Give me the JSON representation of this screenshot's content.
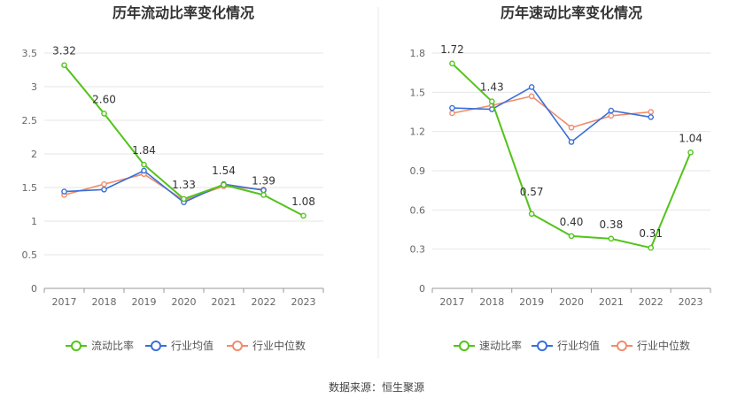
{
  "source_text": "数据来源：恒生聚源",
  "chart_data": [
    {
      "type": "line",
      "title": "历年流动比率变化情况",
      "categories": [
        "2017",
        "2018",
        "2019",
        "2020",
        "2021",
        "2022",
        "2023"
      ],
      "ylim": [
        0,
        3.5
      ],
      "yticks": [
        "0",
        "0.5",
        "1",
        "1.5",
        "2",
        "2.5",
        "3",
        "3.5"
      ],
      "grid": true,
      "legend_position": "bottom",
      "series": [
        {
          "name": "流动比率",
          "color": "#52c41a",
          "values": [
            3.32,
            2.6,
            1.84,
            1.33,
            1.54,
            1.39,
            1.08
          ],
          "labels": [
            "3.32",
            "2.60",
            "1.84",
            "1.33",
            "1.54",
            "1.39",
            "1.08"
          ]
        },
        {
          "name": "行业均值",
          "color": "#3a6fd8",
          "values": [
            1.44,
            1.47,
            1.75,
            1.28,
            1.55,
            1.46,
            null
          ]
        },
        {
          "name": "行业中位数",
          "color": "#f08c6c",
          "values": [
            1.39,
            1.55,
            1.7,
            1.31,
            1.52,
            1.47,
            null
          ]
        }
      ]
    },
    {
      "type": "line",
      "title": "历年速动比率变化情况",
      "categories": [
        "2017",
        "2018",
        "2019",
        "2020",
        "2021",
        "2022",
        "2023"
      ],
      "ylim": [
        0,
        1.8
      ],
      "yticks": [
        "0",
        "0.3",
        "0.6",
        "0.9",
        "1.2",
        "1.5",
        "1.8"
      ],
      "grid": true,
      "legend_position": "bottom",
      "series": [
        {
          "name": "速动比率",
          "color": "#52c41a",
          "values": [
            1.72,
            1.43,
            0.57,
            0.4,
            0.38,
            0.31,
            1.04
          ],
          "labels": [
            "1.72",
            "1.43",
            "0.57",
            "0.40",
            "0.38",
            "0.31",
            "1.04"
          ]
        },
        {
          "name": "行业均值",
          "color": "#3a6fd8",
          "values": [
            1.38,
            1.37,
            1.54,
            1.12,
            1.36,
            1.31,
            null
          ]
        },
        {
          "name": "行业中位数",
          "color": "#f08c6c",
          "values": [
            1.34,
            1.4,
            1.47,
            1.23,
            1.32,
            1.35,
            null
          ]
        }
      ]
    }
  ]
}
